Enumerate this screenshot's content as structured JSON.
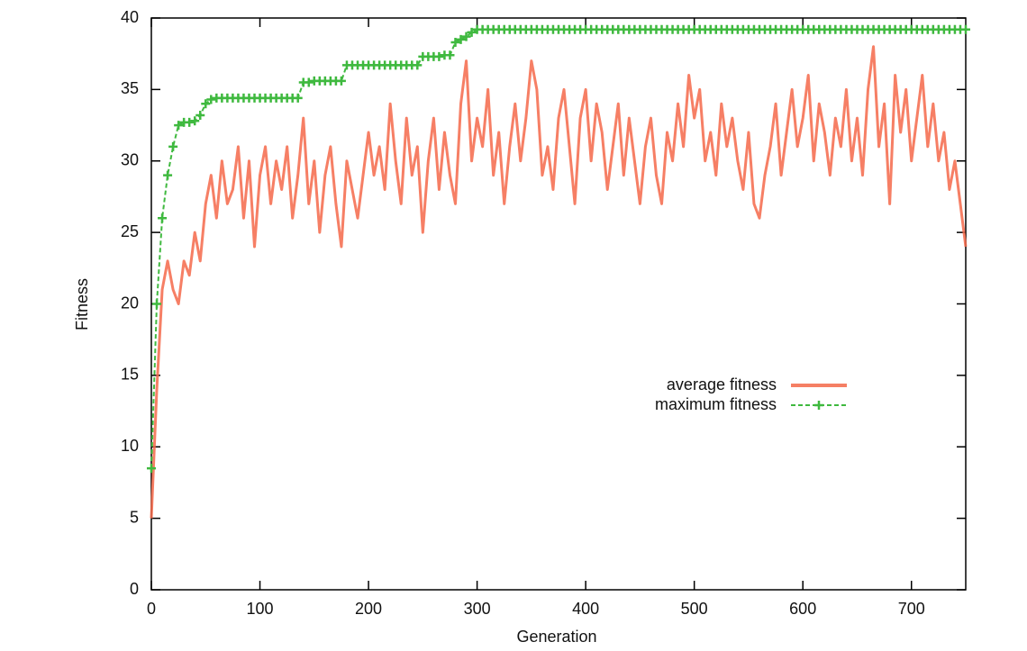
{
  "chart_data": {
    "type": "line",
    "xlabel": "Generation",
    "ylabel": "Fitness",
    "xlim": [
      0,
      750
    ],
    "xticks": [
      0,
      100,
      200,
      300,
      400,
      500,
      600,
      700
    ],
    "ylim": [
      0,
      40
    ],
    "yticks": [
      0,
      5,
      10,
      15,
      20,
      25,
      30,
      35,
      40
    ],
    "legend": "right",
    "x": [
      0,
      5,
      10,
      15,
      20,
      25,
      30,
      35,
      40,
      45,
      50,
      55,
      60,
      65,
      70,
      75,
      80,
      85,
      90,
      95,
      100,
      105,
      110,
      115,
      120,
      125,
      130,
      135,
      140,
      145,
      150,
      155,
      160,
      165,
      170,
      175,
      180,
      185,
      190,
      195,
      200,
      205,
      210,
      215,
      220,
      225,
      230,
      235,
      240,
      245,
      250,
      255,
      260,
      265,
      270,
      275,
      280,
      285,
      290,
      295,
      300,
      305,
      310,
      315,
      320,
      325,
      330,
      335,
      340,
      345,
      350,
      355,
      360,
      365,
      370,
      375,
      380,
      385,
      390,
      395,
      400,
      405,
      410,
      415,
      420,
      425,
      430,
      435,
      440,
      445,
      450,
      455,
      460,
      465,
      470,
      475,
      480,
      485,
      490,
      495,
      500,
      505,
      510,
      515,
      520,
      525,
      530,
      535,
      540,
      545,
      550,
      555,
      560,
      565,
      570,
      575,
      580,
      585,
      590,
      595,
      600,
      605,
      610,
      615,
      620,
      625,
      630,
      635,
      640,
      645,
      650,
      655,
      660,
      665,
      670,
      675,
      680,
      685,
      690,
      695,
      700,
      705,
      710,
      715,
      720,
      725,
      730,
      735,
      740,
      745,
      750
    ],
    "series": [
      {
        "name": "average fitness",
        "color": "#f4694a",
        "values": [
          5,
          14,
          21,
          23,
          21,
          20,
          23,
          22,
          25,
          23,
          27,
          29,
          26,
          30,
          27,
          28,
          31,
          26,
          30,
          24,
          29,
          31,
          27,
          30,
          28,
          31,
          26,
          29,
          33,
          27,
          30,
          25,
          29,
          31,
          27,
          24,
          30,
          28,
          26,
          29,
          32,
          29,
          31,
          28,
          34,
          30,
          27,
          33,
          29,
          31,
          25,
          30,
          33,
          28,
          32,
          29,
          27,
          34,
          37,
          30,
          33,
          31,
          35,
          29,
          32,
          27,
          31,
          34,
          30,
          33,
          37,
          35,
          29,
          31,
          28,
          33,
          35,
          31,
          27,
          33,
          35,
          30,
          34,
          32,
          28,
          31,
          34,
          29,
          33,
          30,
          27,
          31,
          33,
          29,
          27,
          32,
          30,
          34,
          31,
          36,
          33,
          35,
          30,
          32,
          29,
          34,
          31,
          33,
          30,
          28,
          32,
          27,
          26,
          29,
          31,
          34,
          29,
          32,
          35,
          31,
          33,
          36,
          30,
          34,
          32,
          29,
          33,
          31,
          35,
          30,
          33,
          29,
          35,
          38,
          31,
          34,
          27,
          36,
          32,
          35,
          30,
          33,
          36,
          31,
          34,
          30,
          32,
          28,
          30,
          27,
          24
        ]
      },
      {
        "name": "maximum fitness",
        "color": "#3fb93f",
        "values": [
          8.5,
          20,
          26,
          29,
          31,
          32.5,
          32.7,
          32.7,
          32.8,
          33.2,
          34,
          34.3,
          34.4,
          34.4,
          34.4,
          34.4,
          34.4,
          34.4,
          34.4,
          34.4,
          34.4,
          34.4,
          34.4,
          34.4,
          34.4,
          34.4,
          34.4,
          34.4,
          35.5,
          35.5,
          35.6,
          35.6,
          35.6,
          35.6,
          35.6,
          35.6,
          36.7,
          36.7,
          36.7,
          36.7,
          36.7,
          36.7,
          36.7,
          36.7,
          36.7,
          36.7,
          36.7,
          36.7,
          36.7,
          36.7,
          37.3,
          37.3,
          37.3,
          37.3,
          37.4,
          37.4,
          38.3,
          38.5,
          38.7,
          39,
          39.2,
          39.2,
          39.2,
          39.2,
          39.2,
          39.2,
          39.2,
          39.2,
          39.2,
          39.2,
          39.2,
          39.2,
          39.2,
          39.2,
          39.2,
          39.2,
          39.2,
          39.2,
          39.2,
          39.2,
          39.2,
          39.2,
          39.2,
          39.2,
          39.2,
          39.2,
          39.2,
          39.2,
          39.2,
          39.2,
          39.2,
          39.2,
          39.2,
          39.2,
          39.2,
          39.2,
          39.2,
          39.2,
          39.2,
          39.2,
          39.2,
          39.2,
          39.2,
          39.2,
          39.2,
          39.2,
          39.2,
          39.2,
          39.2,
          39.2,
          39.2,
          39.2,
          39.2,
          39.2,
          39.2,
          39.2,
          39.2,
          39.2,
          39.2,
          39.2,
          39.2,
          39.2,
          39.2,
          39.2,
          39.2,
          39.2,
          39.2,
          39.2,
          39.2,
          39.2,
          39.2,
          39.2,
          39.2,
          39.2,
          39.2,
          39.2,
          39.2,
          39.2,
          39.2,
          39.2,
          39.2,
          39.2,
          39.2,
          39.2,
          39.2,
          39.2,
          39.2,
          39.2,
          39.2,
          39.2,
          39.2
        ]
      }
    ]
  }
}
